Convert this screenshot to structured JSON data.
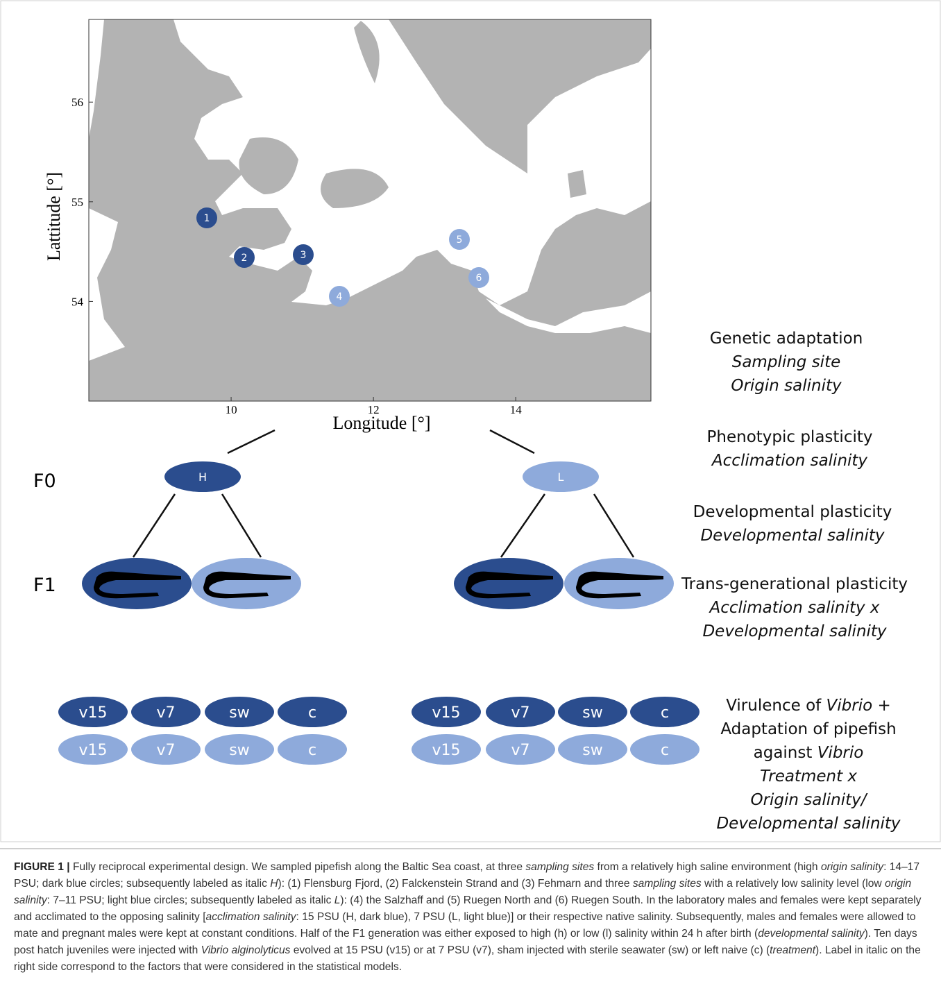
{
  "map": {
    "ylabel": "Lattitude [°]",
    "xlabel": "Longitude [°]",
    "xlim": [
      8,
      15.9
    ],
    "ylim": [
      53,
      56.83
    ],
    "xticks": [
      10,
      12,
      14
    ],
    "yticks": [
      56,
      55,
      54
    ],
    "sites": [
      {
        "label": "1",
        "group": "H"
      },
      {
        "label": "2",
        "group": "H"
      },
      {
        "label": "3",
        "group": "H"
      },
      {
        "label": "4",
        "group": "L"
      },
      {
        "label": "5",
        "group": "L"
      },
      {
        "label": "6",
        "group": "L"
      }
    ]
  },
  "design": {
    "colors": {
      "H": "#2b4d8e",
      "L": "#8eaadb"
    },
    "generations": [
      "F0",
      "F1"
    ],
    "parents": [
      {
        "label": "H",
        "group": "H"
      },
      {
        "label": "L",
        "group": "L"
      }
    ],
    "treatments": [
      "v15",
      "v7",
      "sw",
      "c"
    ]
  },
  "factors": [
    [
      [
        {
          "text": "Genetic adaptation"
        }
      ],
      [
        {
          "text": "Sampling site",
          "italic": true
        }
      ],
      [
        {
          "text": "Origin salinity",
          "italic": true
        }
      ]
    ],
    [
      [
        {
          "text": "Phenotypic plasticity"
        }
      ],
      [
        {
          "text": "Acclimation salinity",
          "italic": true
        }
      ]
    ],
    [
      [
        {
          "text": "Developmental plasticity"
        }
      ],
      [
        {
          "text": "Developmental salinity",
          "italic": true
        }
      ]
    ],
    [
      [
        {
          "text": "Trans-generational plasticity"
        }
      ],
      [
        {
          "text": "Acclimation salinity x",
          "italic": true
        }
      ],
      [
        {
          "text": "Developmental salinity",
          "italic": true
        }
      ]
    ],
    [
      [
        {
          "text": "Virulence of "
        },
        {
          "text": "Vibrio",
          "italic": true
        },
        {
          "text": " +"
        }
      ],
      [
        {
          "text": "Adaptation of pipefish"
        }
      ],
      [
        {
          "text": "against "
        },
        {
          "text": "Vibrio",
          "italic": true
        }
      ],
      [
        {
          "text": "Treatment x",
          "italic": true
        }
      ],
      [
        {
          "text": "Origin salinity/",
          "italic": true
        }
      ],
      [
        {
          "text": "Developmental salinity",
          "italic": true
        }
      ]
    ]
  ],
  "caption": {
    "label": "FIGURE 1 |",
    "segments": [
      {
        "text": " Fully reciprocal experimental design. We sampled pipefish along the Baltic Sea coast, at three "
      },
      {
        "text": "sampling sites",
        "italic": true
      },
      {
        "text": " from a relatively high saline environment (high "
      },
      {
        "text": "origin salinity",
        "italic": true
      },
      {
        "text": ": 14–17 PSU; dark blue circles; subsequently labeled as italic "
      },
      {
        "text": "H",
        "italic": true
      },
      {
        "text": "): (1) Flensburg Fjord, (2) Falckenstein Strand and (3) Fehmarn and three "
      },
      {
        "text": "sampling sites",
        "italic": true
      },
      {
        "text": " with a relatively low salinity level (low "
      },
      {
        "text": "origin salinity",
        "italic": true
      },
      {
        "text": ": 7–11 PSU; light blue circles; subsequently labeled as italic "
      },
      {
        "text": "L",
        "italic": true
      },
      {
        "text": "): (4) the Salzhaff and (5) Ruegen North and (6) Ruegen South. In the laboratory males and females were kept separately and acclimated to the opposing salinity ["
      },
      {
        "text": "acclimation salinity",
        "italic": true
      },
      {
        "text": ": 15 PSU (H, dark blue), 7 PSU (L, light blue)] or their respective native salinity. Subsequently, males and females were allowed to mate and pregnant males were kept at constant conditions. Half of the F1 generation was either exposed to high (h) or low (l) salinity within 24 h after birth ("
      },
      {
        "text": "developmental salinity",
        "italic": true
      },
      {
        "text": "). Ten days post hatch juveniles were injected with "
      },
      {
        "text": "Vibrio alginolyticus",
        "italic": true
      },
      {
        "text": " evolved at 15 PSU (v15) or at 7 PSU (v7), sham injected with sterile seawater (sw) or left naive (c) ("
      },
      {
        "text": "treatment",
        "italic": true
      },
      {
        "text": "). Label in italic on the right side correspond to the factors that were considered in the statistical models."
      }
    ]
  }
}
